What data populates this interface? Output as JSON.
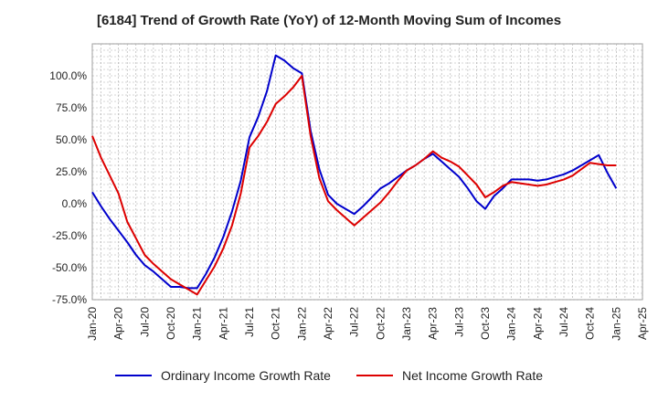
{
  "chart_data": {
    "type": "line",
    "title": "[6184]  Trend of Growth Rate (YoY) of 12-Month Moving Sum of Incomes",
    "xlabel": "",
    "ylabel": "",
    "grid": true,
    "legend_position": "bottom",
    "ylim": [
      -75,
      125
    ],
    "y_ticks": [
      "100.0%",
      "75.0%",
      "50.0%",
      "25.0%",
      "0.0%",
      "-25.0%",
      "-50.0%",
      "-75.0%"
    ],
    "x_ticks": [
      "Jan-20",
      "Apr-20",
      "Jul-20",
      "Oct-20",
      "Jan-21",
      "Apr-21",
      "Jul-21",
      "Oct-21",
      "Jan-22",
      "Apr-22",
      "Jul-22",
      "Oct-22",
      "Jan-23",
      "Apr-23",
      "Jul-23",
      "Oct-23",
      "Jan-24",
      "Apr-24",
      "Jul-24",
      "Oct-24",
      "Jan-25",
      "Apr-25"
    ],
    "x_start": "2020-01",
    "x_end": "2025-04",
    "series": [
      {
        "name": "Ordinary Income Growth Rate",
        "color": "#0000cc",
        "x": [
          "2020-01",
          "2020-02",
          "2020-03",
          "2020-04",
          "2020-05",
          "2020-06",
          "2020-07",
          "2020-08",
          "2020-09",
          "2020-10",
          "2020-11",
          "2020-12",
          "2021-01",
          "2021-02",
          "2021-03",
          "2021-04",
          "2021-05",
          "2021-06",
          "2021-07",
          "2021-08",
          "2021-09",
          "2021-10",
          "2021-11",
          "2021-12",
          "2022-01",
          "2022-02",
          "2022-03",
          "2022-04",
          "2022-05",
          "2022-06",
          "2022-07",
          "2022-08",
          "2022-09",
          "2022-10",
          "2022-11",
          "2022-12",
          "2023-01",
          "2023-02",
          "2023-03",
          "2023-04",
          "2023-05",
          "2023-06",
          "2023-07",
          "2023-08",
          "2023-09",
          "2023-10",
          "2023-11",
          "2023-12",
          "2024-01",
          "2024-02",
          "2024-03",
          "2024-04",
          "2024-05",
          "2024-06",
          "2024-07",
          "2024-08",
          "2024-09",
          "2024-10",
          "2024-11",
          "2024-12",
          "2025-01"
        ],
        "values": [
          9,
          -2,
          -12,
          -21,
          -30,
          -40,
          -48,
          -53,
          -59,
          -65,
          -65,
          -66,
          -66,
          -55,
          -42,
          -26,
          -6,
          18,
          52,
          68,
          88,
          116,
          112,
          106,
          102,
          57,
          27,
          7,
          0,
          -4,
          -8,
          -2,
          5,
          12,
          16,
          21,
          26,
          30,
          35,
          39,
          33,
          27,
          21,
          12,
          2,
          -4,
          6,
          12,
          19,
          19,
          19,
          18,
          19,
          21,
          23,
          26,
          30,
          34,
          38,
          24,
          12
        ]
      },
      {
        "name": "Net Income Growth Rate",
        "color": "#dd0000",
        "x": [
          "2020-01",
          "2020-02",
          "2020-03",
          "2020-04",
          "2020-05",
          "2020-06",
          "2020-07",
          "2020-08",
          "2020-09",
          "2020-10",
          "2020-11",
          "2020-12",
          "2021-01",
          "2021-02",
          "2021-03",
          "2021-04",
          "2021-05",
          "2021-06",
          "2021-07",
          "2021-08",
          "2021-09",
          "2021-10",
          "2021-11",
          "2021-12",
          "2022-01",
          "2022-02",
          "2022-03",
          "2022-04",
          "2022-05",
          "2022-06",
          "2022-07",
          "2022-08",
          "2022-09",
          "2022-10",
          "2022-11",
          "2022-12",
          "2023-01",
          "2023-02",
          "2023-03",
          "2023-04",
          "2023-05",
          "2023-06",
          "2023-07",
          "2023-08",
          "2023-09",
          "2023-10",
          "2023-11",
          "2023-12",
          "2024-01",
          "2024-02",
          "2024-03",
          "2024-04",
          "2024-05",
          "2024-06",
          "2024-07",
          "2024-08",
          "2024-09",
          "2024-10",
          "2024-11",
          "2024-12",
          "2025-01"
        ],
        "values": [
          53,
          36,
          22,
          8,
          -14,
          -27,
          -40,
          -47,
          -53,
          -59,
          -63,
          -67,
          -71,
          -60,
          -49,
          -35,
          -17,
          8,
          44,
          53,
          64,
          78,
          84,
          91,
          100,
          53,
          20,
          2,
          -5,
          -11,
          -17,
          -11,
          -5,
          1,
          9,
          18,
          26,
          30,
          35,
          41,
          36,
          33,
          29,
          22,
          15,
          5,
          9,
          14,
          17,
          16,
          15,
          14,
          15,
          17,
          19,
          22,
          27,
          32,
          31,
          30,
          30
        ]
      }
    ]
  }
}
